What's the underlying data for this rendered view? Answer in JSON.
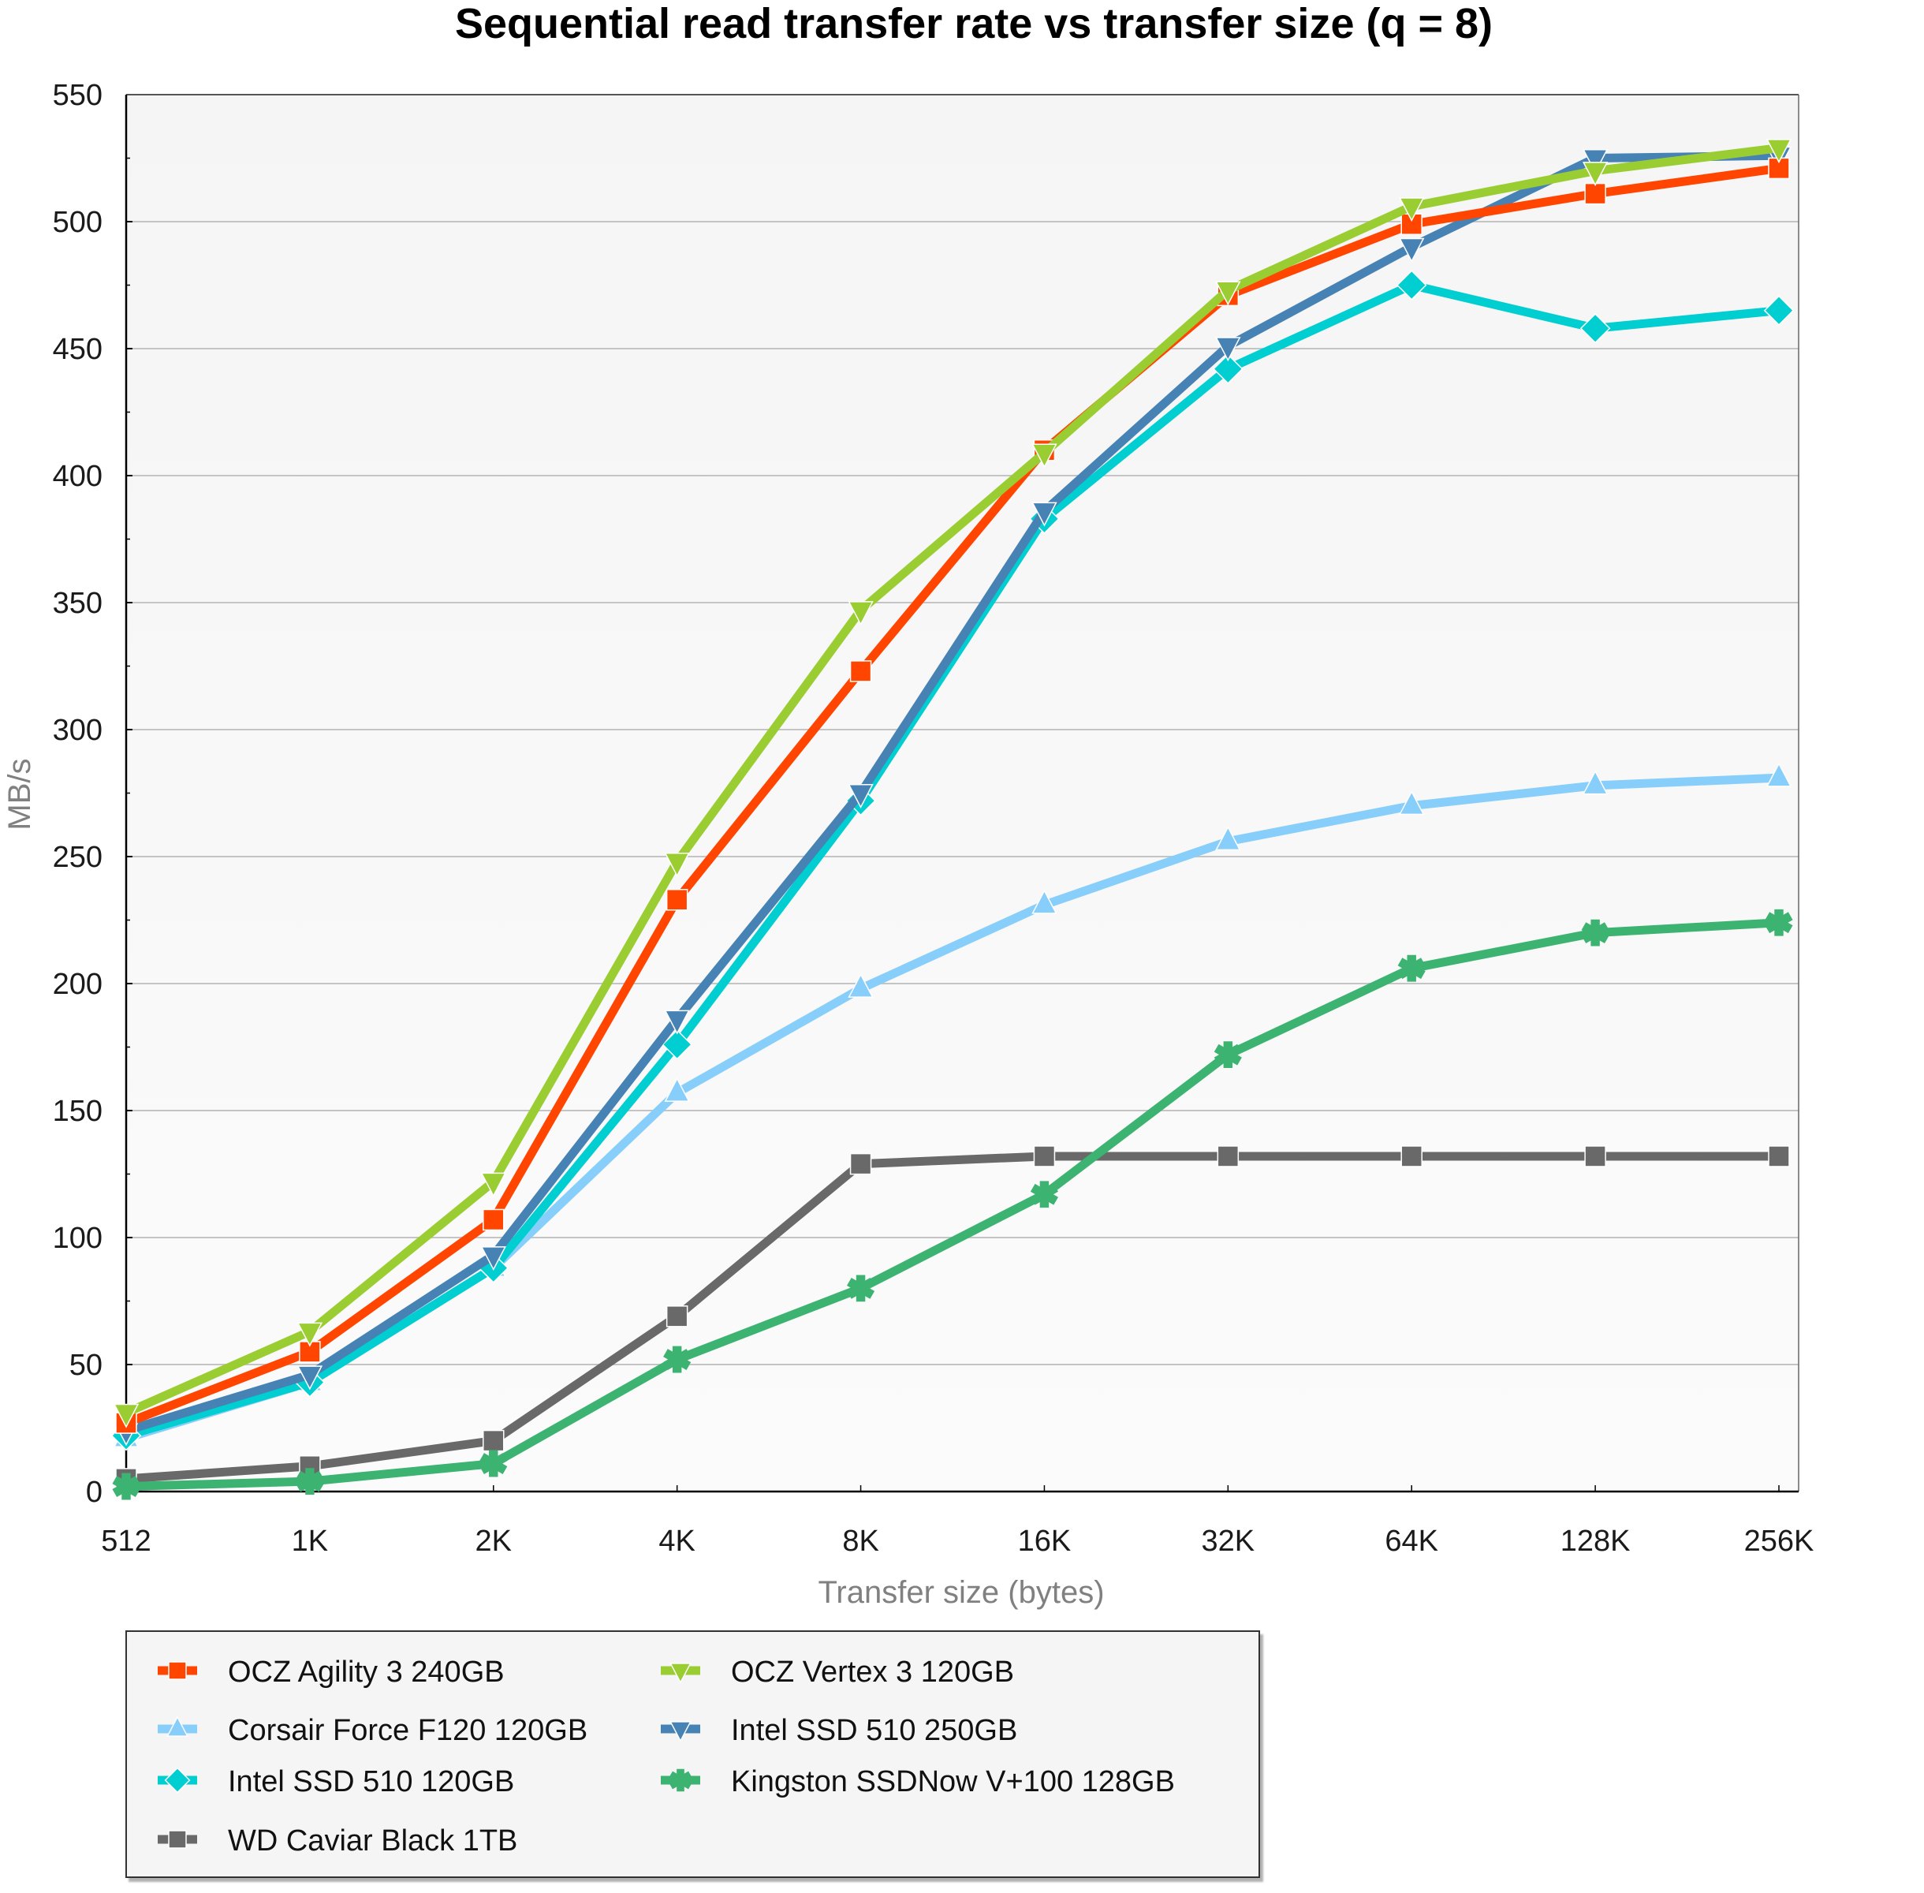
{
  "chart_data": {
    "type": "line",
    "title": "Sequential read transfer rate vs transfer size (q = 8)",
    "xlabel": "Transfer size (bytes)",
    "ylabel": "MB/s",
    "x": [
      "512",
      "1K",
      "2K",
      "4K",
      "8K",
      "16K",
      "32K",
      "64K",
      "128K",
      "256K"
    ],
    "ylim": [
      0,
      550
    ],
    "yticks": [
      0,
      50,
      100,
      150,
      200,
      250,
      300,
      350,
      400,
      450,
      500,
      550
    ],
    "yticks_labels": [
      "0",
      "50",
      "100",
      "150",
      "200",
      "250",
      "300",
      "350",
      "400",
      "450",
      "500",
      "550"
    ],
    "grid": true,
    "legend_position": "bottom-left",
    "series": [
      {
        "name": "OCZ Agility 3 240GB",
        "color": "#ff4500",
        "marker": "square",
        "values": [
          27,
          55,
          107,
          233,
          323,
          410,
          471,
          499,
          511,
          521
        ]
      },
      {
        "name": "OCZ Vertex 3 120GB",
        "color": "#9acd32",
        "marker": "triangle-down",
        "values": [
          31,
          63,
          122,
          248,
          347,
          409,
          473,
          506,
          520,
          529
        ]
      },
      {
        "name": "Corsair Force F120 120GB",
        "color": "#87cefa",
        "marker": "triangle-up",
        "values": [
          21,
          43,
          88,
          157,
          198,
          231,
          256,
          270,
          278,
          281
        ]
      },
      {
        "name": "Intel SSD 510 250GB",
        "color": "#4682b4",
        "marker": "triangle-down",
        "values": [
          24,
          46,
          93,
          186,
          275,
          386,
          451,
          490,
          525,
          526
        ]
      },
      {
        "name": "Intel SSD 510 120GB",
        "color": "#00ced1",
        "marker": "diamond",
        "values": [
          22,
          43,
          88,
          176,
          272,
          383,
          442,
          475,
          458,
          465
        ]
      },
      {
        "name": "Kingston SSDNow V+100 128GB",
        "color": "#3cb371",
        "marker": "asterisk",
        "values": [
          2,
          4,
          11,
          52,
          80,
          117,
          172,
          206,
          220,
          224
        ]
      },
      {
        "name": "WD Caviar Black 1TB",
        "color": "#696969",
        "marker": "square",
        "values": [
          5,
          10,
          20,
          69,
          129,
          132,
          132,
          132,
          132,
          132
        ]
      }
    ],
    "legend_order": [
      0,
      1,
      2,
      3,
      4,
      5,
      6
    ]
  }
}
